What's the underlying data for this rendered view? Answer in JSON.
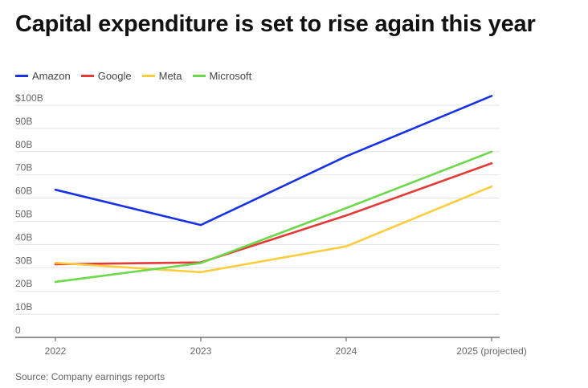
{
  "title": "Capital expenditure is set to rise again this year",
  "source": "Source: Company earnings reports",
  "chart_data": {
    "type": "line",
    "title": "Capital expenditure is set to rise again this year",
    "xlabel": "",
    "ylabel": "",
    "categories": [
      "2022",
      "2023",
      "2024",
      "2025 (projected)"
    ],
    "ylim": [
      0,
      100
    ],
    "yticks": [
      0,
      10,
      20,
      30,
      40,
      50,
      60,
      70,
      80,
      90,
      100
    ],
    "ytick_labels": [
      "0",
      "10B",
      "20B",
      "30B",
      "40B",
      "50B",
      "60B",
      "70B",
      "80B",
      "90B",
      "$100B"
    ],
    "grid": true,
    "legend_position": "top-left",
    "series": [
      {
        "name": "Amazon",
        "color": "#1732e6",
        "values": [
          63.6,
          48.4,
          78,
          104
        ]
      },
      {
        "name": "Google",
        "color": "#e53935",
        "values": [
          31.5,
          32.3,
          52.5,
          75
        ]
      },
      {
        "name": "Meta",
        "color": "#fccc3f",
        "values": [
          32.1,
          28.1,
          39.2,
          65
        ]
      },
      {
        "name": "Microsoft",
        "color": "#6bd94a",
        "values": [
          23.9,
          32,
          55.7,
          80
        ]
      }
    ]
  }
}
